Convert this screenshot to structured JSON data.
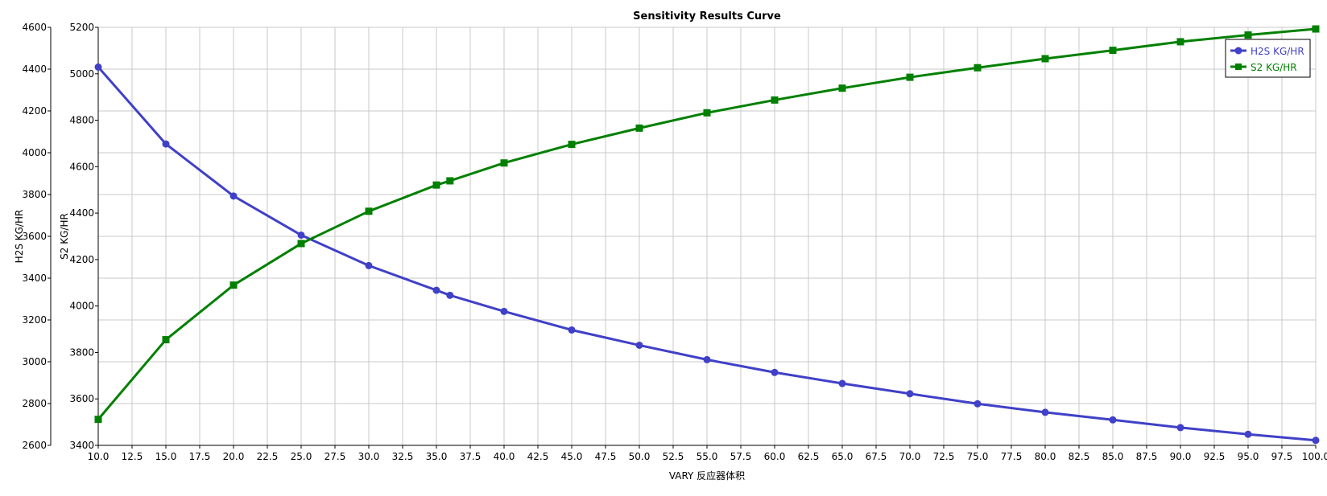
{
  "chart_data": {
    "type": "line",
    "title": "Sensitivity Results Curve",
    "xlabel": "VARY  反应器体积",
    "xlim": [
      10,
      100
    ],
    "x_ticks": [
      "10.0",
      "12.5",
      "15.0",
      "17.5",
      "20.0",
      "22.5",
      "25.0",
      "27.5",
      "30.0",
      "32.5",
      "35.0",
      "37.5",
      "40.0",
      "42.5",
      "45.0",
      "47.5",
      "50.0",
      "52.5",
      "55.0",
      "57.5",
      "60.0",
      "62.5",
      "65.0",
      "67.5",
      "70.0",
      "72.5",
      "75.0",
      "77.5",
      "80.0",
      "82.5",
      "85.0",
      "87.5",
      "90.0",
      "92.5",
      "95.0",
      "97.5",
      "100.0"
    ],
    "axes": [
      {
        "label": "H2S KG/HR",
        "ylim": [
          2600,
          4600
        ],
        "ticks": [
          "2600",
          "2800",
          "3000",
          "3200",
          "3400",
          "3600",
          "3800",
          "4000",
          "4200",
          "4400",
          "4600"
        ]
      },
      {
        "label": "S2 KG/HR",
        "ylim": [
          3400,
          5200
        ],
        "ticks": [
          "3400",
          "3600",
          "3800",
          "4000",
          "4200",
          "4400",
          "4600",
          "4800",
          "5000",
          "5200"
        ]
      }
    ],
    "grid": true,
    "legend_position": "top-right",
    "x": [
      10,
      15,
      20,
      25,
      30,
      35,
      36,
      40,
      45,
      50,
      55,
      60,
      65,
      70,
      75,
      80,
      85,
      90,
      95,
      100
    ],
    "series": [
      {
        "name": "H2S KG/HR",
        "axis": 0,
        "color": "#4040c8",
        "marker": "circle",
        "values": [
          4410,
          4042,
          3793,
          3606,
          3460,
          3342,
          3318,
          3241,
          3152,
          3079,
          3010,
          2949,
          2896,
          2847,
          2799,
          2758,
          2722,
          2685,
          2653,
          2624
        ]
      },
      {
        "name": "S2 KG/HR",
        "axis": 1,
        "color": "#008000",
        "marker": "square",
        "values": [
          3512,
          3855,
          4090,
          4269,
          4408,
          4521,
          4539,
          4616,
          4696,
          4766,
          4832,
          4887,
          4938,
          4985,
          5026,
          5065,
          5101,
          5138,
          5167,
          5193
        ]
      }
    ]
  }
}
